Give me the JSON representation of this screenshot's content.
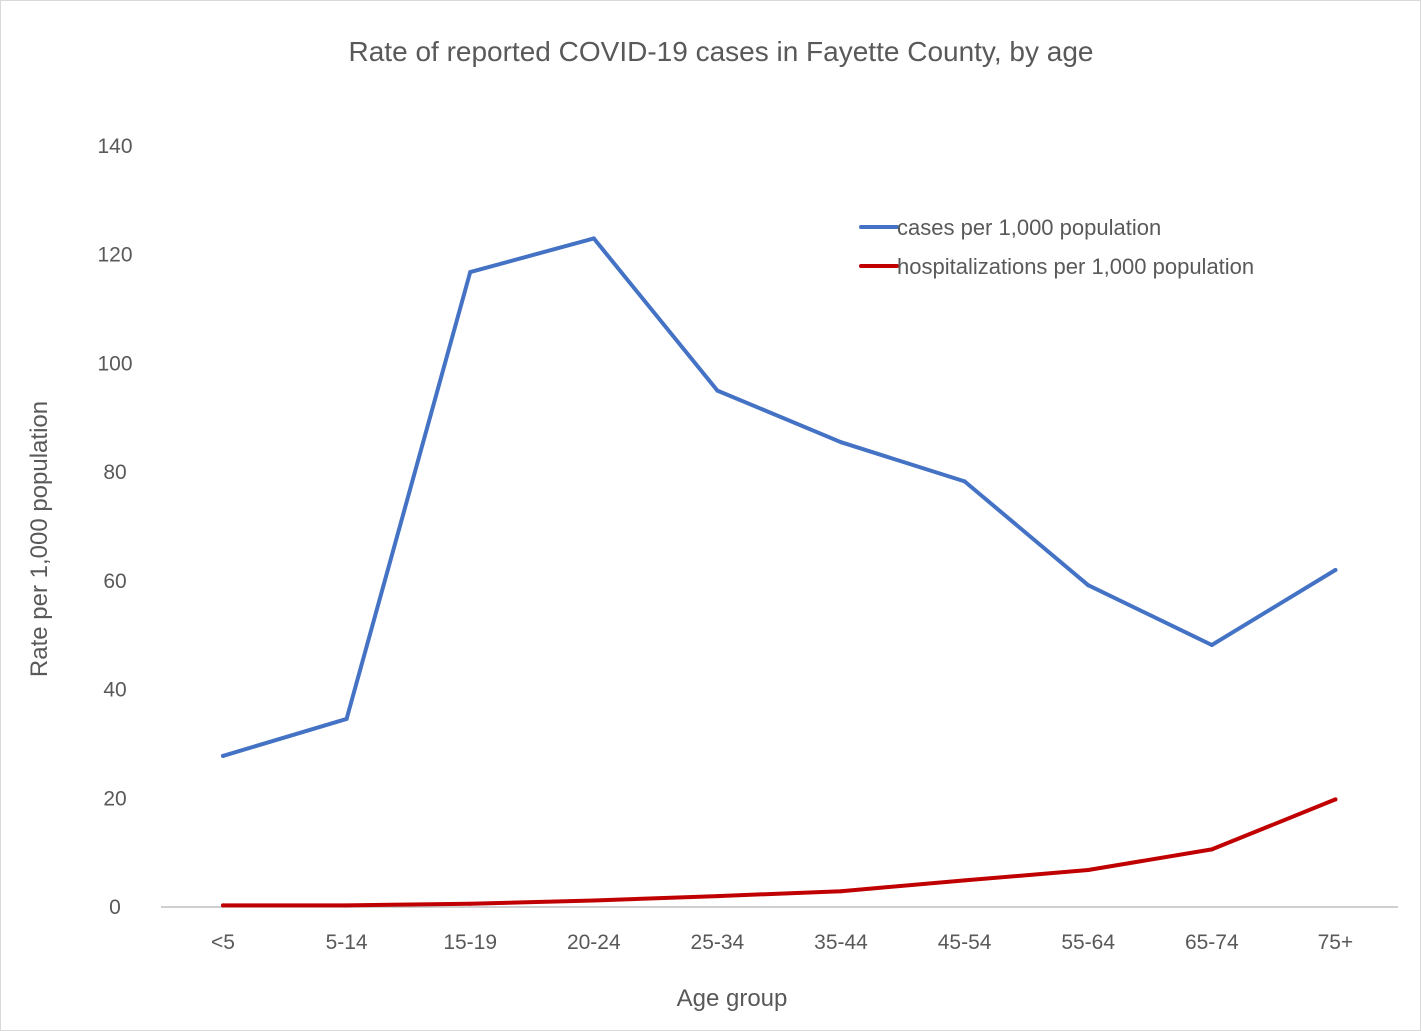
{
  "chart_data": {
    "type": "line",
    "title": "Rate of reported COVID-19 cases in Fayette County, by age",
    "xlabel": "Age group",
    "ylabel": "Rate per 1,000 population",
    "categories": [
      "<5",
      "5-14",
      "15-19",
      "20-24",
      "25-34",
      "35-44",
      "45-54",
      "55-64",
      "65-74",
      "75+"
    ],
    "ylim": [
      0,
      140
    ],
    "yticks": [
      0,
      20,
      40,
      60,
      80,
      100,
      120,
      140
    ],
    "grid": false,
    "legend_position": "top-right",
    "series": [
      {
        "name": "cases per 1,000 population",
        "color": "#4472C4",
        "values": [
          27.8,
          34.6,
          116.8,
          123.0,
          95.0,
          85.5,
          78.3,
          59.2,
          48.2,
          62.0
        ]
      },
      {
        "name": "hospitalizations per 1,000 population",
        "color": "#C00000",
        "values": [
          0.3,
          0.3,
          0.6,
          1.2,
          2.0,
          2.9,
          4.9,
          6.8,
          10.6,
          19.8
        ]
      }
    ]
  }
}
